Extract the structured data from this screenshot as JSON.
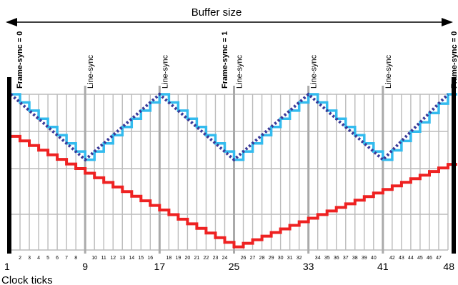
{
  "title": "Buffer size",
  "xlabel": "Clock ticks",
  "marker_labels": {
    "frame_sync_start": "Frame-sync = 0",
    "frame_sync_mid": "Frame-sync = 1",
    "frame_sync_end": "Frame-sync = 0",
    "line_sync": "Line-sync"
  },
  "colors": {
    "red": "#ee2222",
    "light_blue": "#33bbee",
    "dark_blue": "#3a3a99",
    "grid": "#bbbbbb",
    "sync_line": "#aaaaaa",
    "frame_bar": "#000000"
  },
  "clock": {
    "first": 1,
    "last": 48,
    "major_ticks": [
      1,
      9,
      17,
      25,
      33,
      41,
      48
    ],
    "minor_ticks": [
      2,
      3,
      4,
      5,
      6,
      7,
      8,
      10,
      11,
      12,
      13,
      14,
      15,
      16,
      18,
      19,
      20,
      21,
      22,
      23,
      24,
      26,
      27,
      28,
      29,
      30,
      31,
      32,
      34,
      35,
      36,
      37,
      38,
      39,
      40,
      42,
      43,
      44,
      45,
      46,
      47
    ],
    "line_sync_ticks": [
      9,
      17,
      33,
      41
    ],
    "frame_sync_mid_tick": 25
  },
  "chart_data": {
    "type": "line",
    "x_range": [
      1,
      48
    ],
    "series": [
      {
        "key": "red_staircase",
        "color": "#ee2222",
        "shape": "staircase",
        "points": [
          [
            1,
            0.73
          ],
          [
            25,
            0.02
          ],
          [
            48,
            0.55
          ]
        ]
      },
      {
        "key": "light_blue_staircase",
        "color": "#33bbee",
        "shape": "staircase",
        "points": [
          [
            1,
            1.0
          ],
          [
            9,
            0.58
          ],
          [
            17,
            1.0
          ],
          [
            25,
            0.58
          ],
          [
            33,
            1.0
          ],
          [
            41,
            0.58
          ],
          [
            48,
            1.0
          ]
        ]
      },
      {
        "key": "dark_blue_dotted",
        "color": "#3a3a99",
        "shape": "dotted",
        "points": [
          [
            1,
            1.0
          ],
          [
            9,
            0.58
          ],
          [
            17,
            1.0
          ],
          [
            25,
            0.58
          ],
          [
            33,
            1.0
          ],
          [
            41,
            0.58
          ],
          [
            48,
            1.0
          ]
        ]
      }
    ]
  }
}
